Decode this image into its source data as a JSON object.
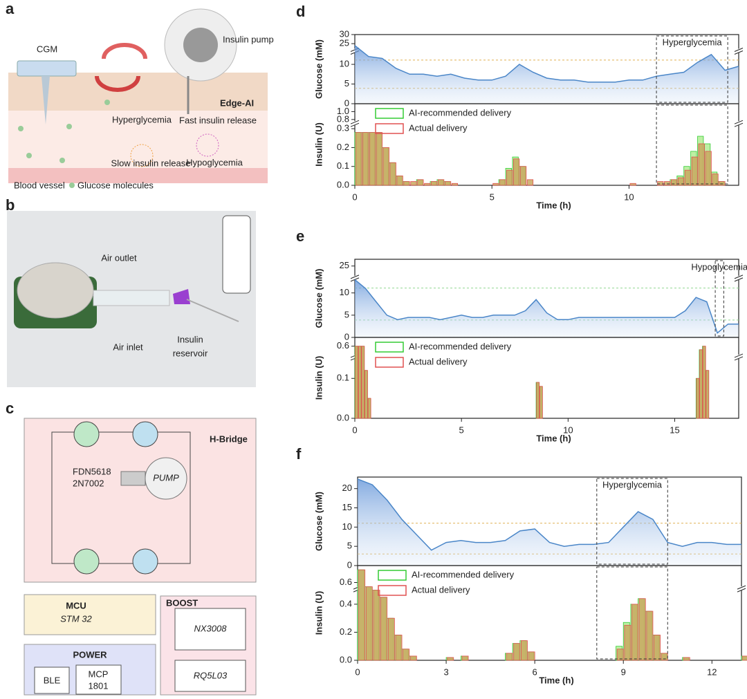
{
  "panels": {
    "a": {
      "letter": "a",
      "labels": [
        "CGM",
        "Insulin pump",
        "Edge-AI",
        "Hyperglycemia",
        "Fast insulin release",
        "Slow insulin release",
        "Hypoglycemia",
        "Blood vessel",
        "Glucose molecules"
      ]
    },
    "b": {
      "letter": "b",
      "labels": [
        "Air outlet",
        "Air inlet",
        "Insulin",
        "reservoir"
      ]
    },
    "c": {
      "letter": "c",
      "labels": [
        "H-Bridge",
        "FDN5618",
        "2N7002",
        "PUMP",
        "MCU",
        "STM 32",
        "BOOST",
        "NX3008",
        "RQ5L03",
        "POWER",
        "BLE",
        "MCP",
        "1801"
      ]
    }
  },
  "chart_data": [
    {
      "type": "line",
      "panel": "d",
      "ylabel": "Glucose (mM)",
      "xlim": [
        0,
        14
      ],
      "ylim": [
        0,
        30
      ],
      "ybreak": [
        13,
        22
      ],
      "yticks": [
        0,
        5,
        10,
        25,
        30
      ],
      "hlines": [
        3.9,
        11.1
      ],
      "hline_color": "#e0b050",
      "color": "#4a86c8",
      "highlight": [
        11,
        13.6
      ],
      "annotation": "Hyperglycemia",
      "x": [
        0,
        0.5,
        1,
        1.5,
        2,
        2.5,
        3,
        3.5,
        4,
        4.5,
        5,
        5.5,
        6,
        6.5,
        7,
        7.5,
        8,
        8.5,
        9,
        9.5,
        10,
        10.5,
        11,
        11.5,
        12,
        12.5,
        13,
        13.5,
        14
      ],
      "values": [
        24,
        12,
        11.5,
        9,
        7.5,
        7.5,
        7,
        7.5,
        6.5,
        6,
        6,
        7,
        10,
        8,
        6.5,
        6,
        6,
        5.5,
        5.5,
        5.5,
        6,
        6,
        7,
        7.5,
        8,
        10.5,
        12.5,
        8.5,
        9.5
      ]
    },
    {
      "type": "bar",
      "ylabel": "Insulin (U)",
      "xlabel": "Time (h)",
      "xlim": [
        0,
        14
      ],
      "ylim": [
        0,
        1.2
      ],
      "ybreak": [
        0.32,
        0.75
      ],
      "yticks": [
        {
          "value": 0,
          "label": "0.0"
        },
        0.1,
        0.2,
        0.3,
        0.8,
        {
          "value": 1,
          "label": "1.0"
        }
      ],
      "xticks": [
        0,
        5,
        10
      ],
      "bar_width": 0.25,
      "legend": "upper left",
      "highlight": [
        11,
        13.6
      ],
      "series": [
        {
          "name": "AI-recommended delivery",
          "color": "#33cc33",
          "x": [
            0,
            0.25,
            0.5,
            0.75,
            1,
            1.25,
            1.5,
            1.75,
            2.25,
            2.75,
            3,
            3.25,
            5.25,
            5.5,
            5.75,
            6,
            11.5,
            11.75,
            12,
            12.25,
            12.5,
            12.75,
            13,
            13.25
          ],
          "values": [
            0.28,
            0.28,
            0.28,
            0.28,
            0.2,
            0.12,
            0.05,
            0.02,
            0.03,
            0.02,
            0.03,
            0.02,
            0.03,
            0.09,
            0.15,
            0.1,
            0.03,
            0.05,
            0.1,
            0.18,
            0.26,
            0.22,
            0.07,
            0.02
          ]
        },
        {
          "name": "Actual delivery",
          "color": "#e05050",
          "x": [
            0,
            0.25,
            0.5,
            0.75,
            1,
            1.25,
            1.5,
            1.75,
            2,
            2.25,
            2.5,
            2.75,
            3,
            3.25,
            3.5,
            5,
            5.25,
            5.5,
            5.75,
            6,
            6.25,
            10,
            11,
            11.25,
            11.5,
            11.75,
            12,
            12.25,
            12.5,
            12.75,
            13,
            13.25
          ],
          "values": [
            0.28,
            0.28,
            0.28,
            0.28,
            0.2,
            0.12,
            0.05,
            0.02,
            0.02,
            0.03,
            0.01,
            0.02,
            0.03,
            0.02,
            0.01,
            0.01,
            0.03,
            0.08,
            0.14,
            0.1,
            0.03,
            0.01,
            0.02,
            0.02,
            0.03,
            0.04,
            0.08,
            0.15,
            0.22,
            0.18,
            0.06,
            0.02
          ]
        }
      ]
    },
    {
      "type": "line",
      "panel": "e",
      "ylabel": "Glucose (mM)",
      "xlim": [
        0,
        18
      ],
      "ylim": [
        0,
        27
      ],
      "ybreak": [
        13,
        22
      ],
      "yticks": [
        0,
        5,
        10,
        25
      ],
      "hlines": [
        3.9,
        11.1
      ],
      "hline_color": "#90d890",
      "color": "#4a86c8",
      "highlight": [
        16.9,
        17.3
      ],
      "annotation": "Hypoglycemia",
      "x": [
        0,
        0.5,
        1,
        1.5,
        2,
        2.5,
        3,
        3.5,
        4,
        4.5,
        5,
        5.5,
        6,
        6.5,
        7,
        7.5,
        8,
        8.5,
        9,
        9.5,
        10,
        10.5,
        11,
        11.5,
        12,
        12.5,
        13,
        13.5,
        14,
        14.5,
        15,
        15.5,
        16,
        16.5,
        17,
        17.5,
        18
      ],
      "values": [
        13,
        11,
        8,
        5,
        4,
        4.5,
        4.5,
        4.5,
        4,
        4.5,
        5,
        4.5,
        4.5,
        5,
        5,
        5,
        6,
        8.5,
        5.5,
        4,
        4,
        4.5,
        4.5,
        4.5,
        4.5,
        4.5,
        4.5,
        4.5,
        4.5,
        4.5,
        4.5,
        6,
        9,
        8,
        1,
        3,
        3
      ]
    },
    {
      "type": "bar",
      "ylabel": "Insulin (U)",
      "xlabel": "Time (h)",
      "xlim": [
        0,
        18
      ],
      "ylim": [
        0,
        0.65
      ],
      "ybreak": [
        0.15,
        0.55
      ],
      "yticks": [
        {
          "value": 0,
          "label": "0.0"
        },
        0.1,
        0.6
      ],
      "xticks": [
        0,
        5,
        10,
        15
      ],
      "bar_width": 0.15,
      "legend": "upper left",
      "series": [
        {
          "name": "AI-recommended delivery",
          "color": "#33cc33",
          "x": [
            0,
            0.15,
            0.3,
            0.45,
            0.6,
            8.5,
            8.65,
            16,
            16.15,
            16.3,
            16.45
          ],
          "values": [
            0.6,
            0.6,
            0.6,
            0.12,
            0.05,
            0.09,
            0.08,
            0.1,
            0.58,
            0.6,
            0.12
          ]
        },
        {
          "name": "Actual delivery",
          "color": "#e05050",
          "x": [
            0,
            0.15,
            0.3,
            0.45,
            0.6,
            8.5,
            8.65,
            16,
            16.15,
            16.3,
            16.45
          ],
          "values": [
            0.6,
            0.6,
            0.6,
            0.12,
            0.05,
            0.09,
            0.08,
            0.1,
            0.58,
            0.6,
            0.12
          ]
        }
      ]
    },
    {
      "type": "line",
      "panel": "f",
      "ylabel": "Glucose (mM)",
      "xlim": [
        0,
        13
      ],
      "ylim": [
        0,
        23
      ],
      "yticks": [
        0,
        5,
        10,
        15,
        20
      ],
      "hlines": [
        3,
        11
      ],
      "hline_color": "#e0b050",
      "color": "#4a86c8",
      "highlight": [
        8.1,
        10.5
      ],
      "annotation": "Hyperglycemia",
      "x": [
        0,
        0.5,
        1,
        1.5,
        2,
        2.5,
        3,
        3.5,
        4,
        4.5,
        5,
        5.5,
        6,
        6.5,
        7,
        7.5,
        8,
        8.5,
        9,
        9.5,
        10,
        10.5,
        11,
        11.5,
        12,
        12.5,
        13
      ],
      "values": [
        22.5,
        21,
        17,
        12,
        8,
        4,
        6,
        6.5,
        6,
        6,
        6.5,
        9,
        9.5,
        6,
        5,
        5.5,
        5.5,
        6,
        10,
        14,
        12,
        6,
        5,
        6,
        6,
        5.5,
        5.5
      ]
    },
    {
      "type": "bar",
      "ylabel": "Insulin (U)",
      "xlabel": "Time (h)",
      "xlim": [
        0,
        13
      ],
      "ylim": [
        0,
        0.8
      ],
      "ybreak": [
        0.5,
        0.55
      ],
      "yticks": [
        {
          "value": 0,
          "label": "0.0"
        },
        0.2,
        0.4,
        0.6
      ],
      "xticks": [
        0,
        3,
        6,
        9,
        12
      ],
      "bar_width": 0.25,
      "legend": "upper left",
      "highlight": [
        8.1,
        10.5
      ],
      "series": [
        {
          "name": "AI-recommended delivery",
          "color": "#33cc33",
          "x": [
            0,
            0.25,
            0.5,
            0.75,
            1,
            1.25,
            1.5,
            1.75,
            3,
            3.5,
            5,
            5.25,
            5.5,
            5.75,
            8.75,
            9,
            9.25,
            9.5,
            9.75,
            10,
            10.25,
            11,
            13
          ],
          "values": [
            0.75,
            0.55,
            0.5,
            0.45,
            0.3,
            0.18,
            0.08,
            0.03,
            0.02,
            0.03,
            0.05,
            0.12,
            0.14,
            0.06,
            0.1,
            0.27,
            0.4,
            0.44,
            0.35,
            0.18,
            0.05,
            0.02,
            0.03
          ]
        },
        {
          "name": "Actual delivery",
          "color": "#e05050",
          "x": [
            0,
            0.25,
            0.5,
            0.75,
            1,
            1.25,
            1.5,
            1.75,
            3,
            3.5,
            5,
            5.25,
            5.5,
            5.75,
            8.75,
            9,
            9.25,
            9.5,
            9.75,
            10,
            10.25,
            11,
            13
          ],
          "values": [
            0.75,
            0.55,
            0.5,
            0.45,
            0.3,
            0.18,
            0.08,
            0.03,
            0.02,
            0.03,
            0.05,
            0.12,
            0.14,
            0.06,
            0.08,
            0.25,
            0.4,
            0.44,
            0.35,
            0.18,
            0.05,
            0.02,
            0.03
          ]
        }
      ]
    }
  ]
}
